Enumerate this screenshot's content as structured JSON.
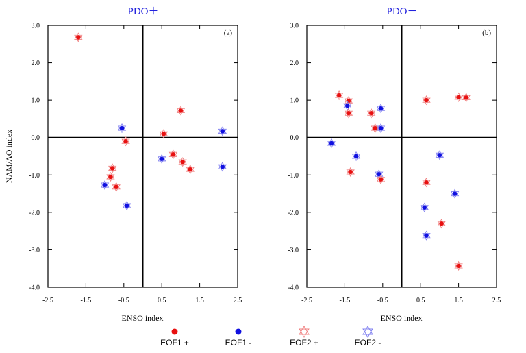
{
  "colors": {
    "eof1_pos": "#e81010",
    "eof1_neg": "#1010e0",
    "eof2_pos": "#f08080",
    "eof2_neg": "#8080f0",
    "title": "#2222dd"
  },
  "legend": {
    "items": [
      {
        "label": "EOF1 +",
        "marker": "filled-circle",
        "color": "#e81010"
      },
      {
        "label": "EOF1 -",
        "marker": "filled-circle",
        "color": "#1010e0"
      },
      {
        "label": "EOF2 +",
        "marker": "hexagram",
        "color": "#f08080"
      },
      {
        "label": "EOF2 -",
        "marker": "hexagram",
        "color": "#8080f0"
      }
    ]
  },
  "chart_data": [
    {
      "type": "scatter",
      "title": "PDO＋",
      "tag": "(a)",
      "xlabel": "ENSO index",
      "ylabel": "NAM/AO index",
      "xlim": [
        -2.5,
        2.5
      ],
      "ylim": [
        -4.0,
        3.0
      ],
      "xticks": [
        "-2.5",
        "-1.5",
        "-0.5",
        "0.5",
        "1.5",
        "2.5"
      ],
      "yticks": [
        "3.0",
        "2.0",
        "1.0",
        "0.0",
        "-1.0",
        "-2.0",
        "-3.0",
        "-4.0"
      ],
      "reference_lines": {
        "x": 0,
        "y": 0
      },
      "points": [
        {
          "x": -1.7,
          "y": 2.68,
          "group": "EOF1 +"
        },
        {
          "x": -0.55,
          "y": 0.25,
          "group": "EOF1 -"
        },
        {
          "x": -0.45,
          "y": -0.1,
          "group": "EOF1 +"
        },
        {
          "x": -0.8,
          "y": -0.82,
          "group": "EOF1 +"
        },
        {
          "x": -0.85,
          "y": -1.05,
          "group": "EOF1 +"
        },
        {
          "x": -1.0,
          "y": -1.27,
          "group": "EOF1 -"
        },
        {
          "x": -0.7,
          "y": -1.32,
          "group": "EOF1 +"
        },
        {
          "x": -0.42,
          "y": -1.82,
          "group": "EOF1 -"
        },
        {
          "x": 0.55,
          "y": 0.1,
          "group": "EOF1 +"
        },
        {
          "x": 1.0,
          "y": 0.72,
          "group": "EOF1 +"
        },
        {
          "x": 2.1,
          "y": 0.17,
          "group": "EOF1 -"
        },
        {
          "x": 0.5,
          "y": -0.57,
          "group": "EOF1 -"
        },
        {
          "x": 0.8,
          "y": -0.45,
          "group": "EOF1 +"
        },
        {
          "x": 1.05,
          "y": -0.65,
          "group": "EOF1 +"
        },
        {
          "x": 1.25,
          "y": -0.85,
          "group": "EOF1 +"
        },
        {
          "x": 2.1,
          "y": -0.78,
          "group": "EOF1 -"
        }
      ]
    },
    {
      "type": "scatter",
      "title": "PDO－",
      "tag": "(b)",
      "xlabel": "ENSO index",
      "ylabel": "",
      "xlim": [
        -2.5,
        2.5
      ],
      "ylim": [
        -4.0,
        3.0
      ],
      "xticks": [
        "-2.5",
        "-1.5",
        "-0.5",
        "0.5",
        "1.5",
        "2.5"
      ],
      "yticks": [
        "3.0",
        "2.0",
        "1.0",
        "0.0",
        "-1.0",
        "-2.0",
        "-3.0",
        "-4.0"
      ],
      "reference_lines": {
        "x": 0,
        "y": 0
      },
      "points": [
        {
          "x": -1.65,
          "y": 1.13,
          "group": "EOF1 +"
        },
        {
          "x": -1.4,
          "y": 0.98,
          "group": "EOF1 +"
        },
        {
          "x": -1.43,
          "y": 0.85,
          "group": "EOF1 -"
        },
        {
          "x": -1.4,
          "y": 0.65,
          "group": "EOF1 +"
        },
        {
          "x": -0.8,
          "y": 0.65,
          "group": "EOF1 +"
        },
        {
          "x": -0.7,
          "y": 0.25,
          "group": "EOF1 +"
        },
        {
          "x": -0.55,
          "y": 0.78,
          "group": "EOF1 -"
        },
        {
          "x": -0.55,
          "y": 0.25,
          "group": "EOF1 -"
        },
        {
          "x": -1.85,
          "y": -0.15,
          "group": "EOF1 -"
        },
        {
          "x": -1.2,
          "y": -0.5,
          "group": "EOF1 -"
        },
        {
          "x": -1.35,
          "y": -0.92,
          "group": "EOF1 +"
        },
        {
          "x": -0.6,
          "y": -0.98,
          "group": "EOF1 -"
        },
        {
          "x": -0.55,
          "y": -1.12,
          "group": "EOF1 +"
        },
        {
          "x": 0.65,
          "y": 1.0,
          "group": "EOF1 +"
        },
        {
          "x": 1.5,
          "y": 1.08,
          "group": "EOF1 +"
        },
        {
          "x": 1.7,
          "y": 1.07,
          "group": "EOF1 +"
        },
        {
          "x": 1.0,
          "y": -0.47,
          "group": "EOF1 -"
        },
        {
          "x": 0.65,
          "y": -1.2,
          "group": "EOF1 +"
        },
        {
          "x": 1.4,
          "y": -1.5,
          "group": "EOF1 -"
        },
        {
          "x": 0.6,
          "y": -1.87,
          "group": "EOF1 -"
        },
        {
          "x": 1.05,
          "y": -2.3,
          "group": "EOF1 +"
        },
        {
          "x": 0.65,
          "y": -2.62,
          "group": "EOF1 -"
        },
        {
          "x": 1.5,
          "y": -3.43,
          "group": "EOF1 +"
        }
      ]
    }
  ]
}
